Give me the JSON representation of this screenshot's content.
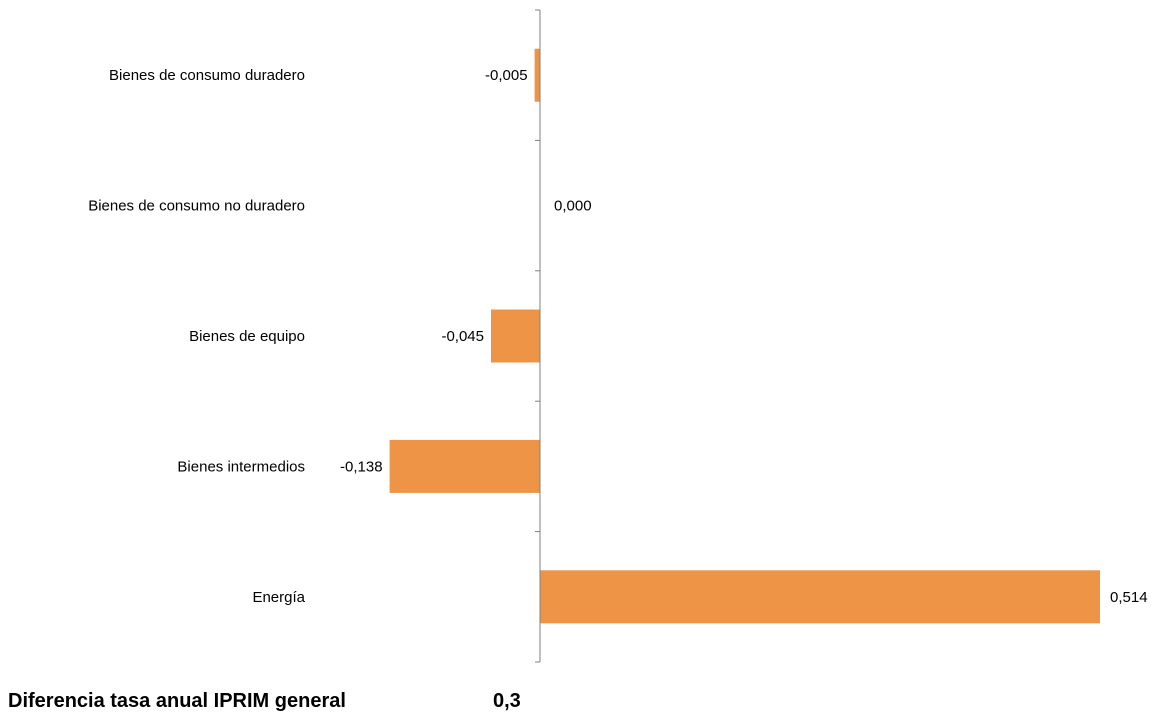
{
  "chart_data": {
    "type": "bar",
    "orientation": "horizontal",
    "categories": [
      "Bienes de consumo duradero",
      "Bienes de consumo no duradero",
      "Bienes de equipo",
      "Bienes intermedios",
      "Energía"
    ],
    "values": [
      -0.005,
      0.0,
      -0.045,
      -0.138,
      0.514
    ],
    "value_labels": [
      "-0,005",
      "0,000",
      "-0,045",
      "-0,138",
      "0,514"
    ],
    "bar_color": "#ED9446",
    "axis_color": "#808080",
    "grid": false,
    "legend": "none"
  },
  "footer": {
    "label": "Diferencia tasa anual IPRIM general",
    "value": "0,3"
  }
}
